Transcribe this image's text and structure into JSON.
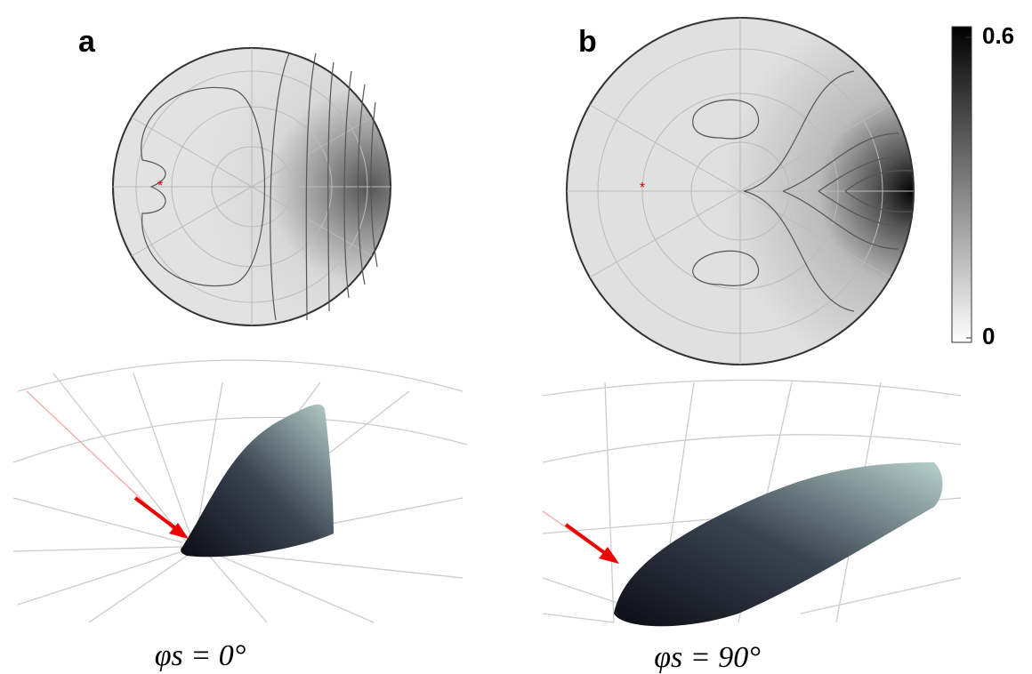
{
  "panels": [
    {
      "label": "a",
      "caption": "φs = 0°"
    },
    {
      "label": "b",
      "caption": "φs = 90°"
    }
  ],
  "colorbar": {
    "lim": [
      0,
      0.6
    ],
    "ticks": [
      0.6,
      0
    ]
  }
}
